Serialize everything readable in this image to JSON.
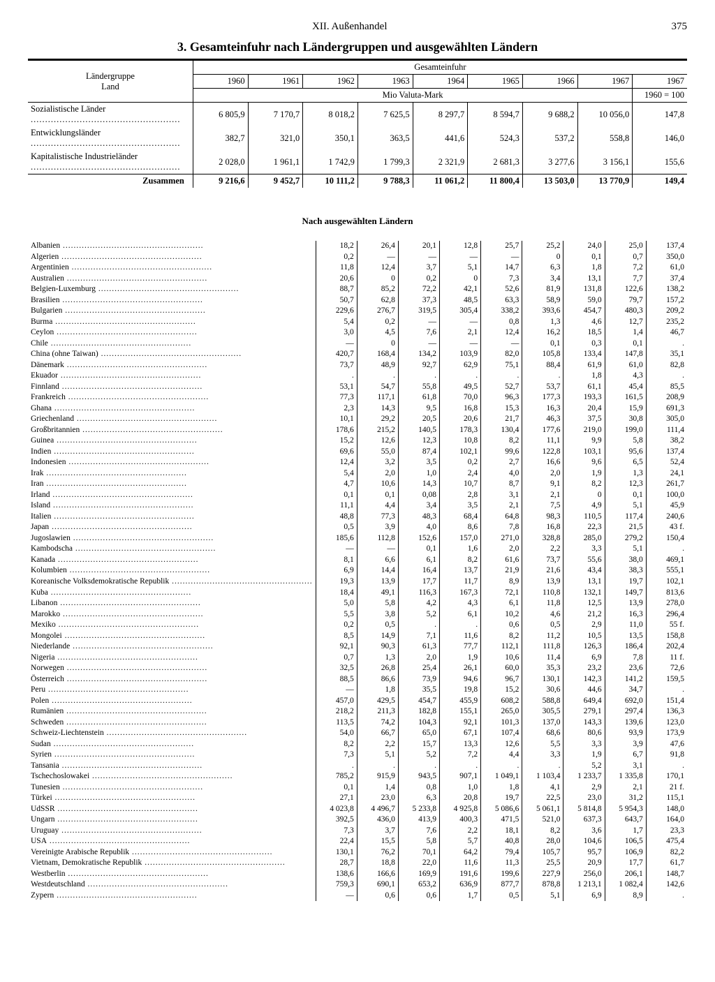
{
  "header": {
    "chapter": "XII. Außenhandel",
    "page": "375"
  },
  "title": "3. Gesamteinfuhr nach Ländergruppen und ausgewählten Ländern",
  "table_header": {
    "stub": "Ländergruppe\nLand",
    "span": "Gesamteinfuhr",
    "years": [
      "1960",
      "1961",
      "1962",
      "1963",
      "1964",
      "1965",
      "1966",
      "1967",
      "1967"
    ],
    "unit": "Mio Valuta-Mark",
    "index_base": "1960 = 100"
  },
  "groups": [
    {
      "label": "Sozialistische Länder",
      "vals": [
        "6 805,9",
        "7 170,7",
        "8 018,2",
        "7 625,5",
        "8 297,7",
        "8 594,7",
        "9 688,2",
        "10 056,0",
        "147,8"
      ]
    },
    {
      "label": "Entwicklungsländer",
      "vals": [
        "382,7",
        "321,0",
        "350,1",
        "363,5",
        "441,6",
        "524,3",
        "537,2",
        "558,8",
        "146,0"
      ]
    },
    {
      "label": "Kapitalistische Industrieländer",
      "vals": [
        "2 028,0",
        "1 961,1",
        "1 742,9",
        "1 799,3",
        "2 321,9",
        "2 681,3",
        "3 277,6",
        "3 156,1",
        "155,6"
      ]
    }
  ],
  "sum": {
    "label": "Zusammen",
    "vals": [
      "9 216,6",
      "9 452,7",
      "10 111,2",
      "9 788,3",
      "11 061,2",
      "11 800,4",
      "13 503,0",
      "13 770,9",
      "149,4"
    ]
  },
  "sub_title": "Nach ausgewählten Ländern",
  "countries": [
    [
      "Albanien",
      "18,2",
      "26,4",
      "20,1",
      "12,8",
      "25,7",
      "25,2",
      "24,0",
      "25,0",
      "137,4"
    ],
    [
      "Algerien",
      "0,2",
      "—",
      "—",
      "—",
      "—",
      "0",
      "0,1",
      "0,7",
      "350,0"
    ],
    [
      "Argentinien",
      "11,8",
      "12,4",
      "3,7",
      "5,1",
      "14,7",
      "6,3",
      "1,8",
      "7,2",
      "61,0"
    ],
    [
      "Australien",
      "20,6",
      "0",
      "0,2",
      "0",
      "7,3",
      "3,4",
      "13,1",
      "7,7",
      "37,4"
    ],
    [
      "Belgien-Luxemburg",
      "88,7",
      "85,2",
      "72,2",
      "42,1",
      "52,6",
      "81,9",
      "131,8",
      "122,6",
      "138,2"
    ],
    [
      "Brasilien",
      "50,7",
      "62,8",
      "37,3",
      "48,5",
      "63,3",
      "58,9",
      "59,0",
      "79,7",
      "157,2"
    ],
    [
      "Bulgarien",
      "229,6",
      "276,7",
      "319,5",
      "305,4",
      "338,2",
      "393,6",
      "454,7",
      "480,3",
      "209,2"
    ],
    [
      "Burma",
      "5,4",
      "0,2",
      "—",
      "—",
      "0,8",
      "1,3",
      "4,6",
      "12,7",
      "235,2"
    ],
    [
      "Ceylon",
      "3,0",
      "4,5",
      "7,6",
      "2,1",
      "12,4",
      "16,2",
      "18,5",
      "1,4",
      "46,7"
    ],
    [
      "Chile",
      "—",
      "0",
      "—",
      "—",
      "—",
      "0,1",
      "0,3",
      "0,1",
      "."
    ],
    [
      "China (ohne Taiwan)",
      "420,7",
      "168,4",
      "134,2",
      "103,9",
      "82,0",
      "105,8",
      "133,4",
      "147,8",
      "35,1"
    ],
    [
      "Dänemark",
      "73,7",
      "48,9",
      "92,7",
      "62,9",
      "75,1",
      "88,4",
      "61,9",
      "61,0",
      "82,8"
    ],
    [
      "Ekuador",
      ".",
      ".",
      ".",
      ".",
      ".",
      ".",
      "1,8",
      "4,3",
      "."
    ],
    [
      "Finnland",
      "53,1",
      "54,7",
      "55,8",
      "49,5",
      "52,7",
      "53,7",
      "61,1",
      "45,4",
      "85,5"
    ],
    [
      "Frankreich",
      "77,3",
      "117,1",
      "61,8",
      "70,0",
      "96,3",
      "177,3",
      "193,3",
      "161,5",
      "208,9"
    ],
    [
      "Ghana",
      "2,3",
      "14,3",
      "9,5",
      "16,8",
      "15,3",
      "16,3",
      "20,4",
      "15,9",
      "691,3"
    ],
    [
      "Griechenland",
      "10,1",
      "29,2",
      "20,5",
      "20,6",
      "21,7",
      "46,3",
      "37,5",
      "30,8",
      "305,0"
    ],
    [
      "Großbritannien",
      "178,6",
      "215,2",
      "140,5",
      "178,3",
      "130,4",
      "177,6",
      "219,0",
      "199,0",
      "111,4"
    ],
    [
      "Guinea",
      "15,2",
      "12,6",
      "12,3",
      "10,8",
      "8,2",
      "11,1",
      "9,9",
      "5,8",
      "38,2"
    ],
    [
      "Indien",
      "69,6",
      "55,0",
      "87,4",
      "102,1",
      "99,6",
      "122,8",
      "103,1",
      "95,6",
      "137,4"
    ],
    [
      "Indonesien",
      "12,4",
      "3,2",
      "3,5",
      "0,2",
      "2,7",
      "16,6",
      "9,6",
      "6,5",
      "52,4"
    ],
    [
      "Irak",
      "5,4",
      "2,0",
      "1,0",
      "2,4",
      "4,0",
      "2,0",
      "1,9",
      "1,3",
      "24,1"
    ],
    [
      "Iran",
      "4,7",
      "10,6",
      "14,3",
      "10,7",
      "8,7",
      "9,1",
      "8,2",
      "12,3",
      "261,7"
    ],
    [
      "Irland",
      "0,1",
      "0,1",
      "0,08",
      "2,8",
      "3,1",
      "2,1",
      "0",
      "0,1",
      "100,0"
    ],
    [
      "Island",
      "11,1",
      "4,4",
      "3,4",
      "3,5",
      "2,1",
      "7,5",
      "4,9",
      "5,1",
      "45,9"
    ],
    [
      "Italien",
      "48,8",
      "77,3",
      "48,3",
      "68,4",
      "64,8",
      "98,3",
      "110,5",
      "117,4",
      "240,6"
    ],
    [
      "Japan",
      "0,5",
      "3,9",
      "4,0",
      "8,6",
      "7,8",
      "16,8",
      "22,3",
      "21,5",
      "43 f."
    ],
    [
      "Jugoslawien",
      "185,6",
      "112,8",
      "152,6",
      "157,0",
      "271,0",
      "328,8",
      "285,0",
      "279,2",
      "150,4"
    ],
    [
      "Kambodscha",
      "—",
      "—",
      "0,1",
      "1,6",
      "2,0",
      "2,2",
      "3,3",
      "5,1",
      "."
    ],
    [
      "Kanada",
      "8,1",
      "6,6",
      "6,1",
      "8,2",
      "61,6",
      "73,7",
      "55,6",
      "38,0",
      "469,1"
    ],
    [
      "Kolumbien",
      "6,9",
      "14,4",
      "16,4",
      "13,7",
      "21,9",
      "21,6",
      "43,4",
      "38,3",
      "555,1"
    ],
    [
      "Koreanische Volksdemokratische Republik",
      "19,3",
      "13,9",
      "17,7",
      "11,7",
      "8,9",
      "13,9",
      "13,1",
      "19,7",
      "102,1"
    ],
    [
      "Kuba",
      "18,4",
      "49,1",
      "116,3",
      "167,3",
      "72,1",
      "110,8",
      "132,1",
      "149,7",
      "813,6"
    ],
    [
      "Libanon",
      "5,0",
      "5,8",
      "4,2",
      "4,3",
      "6,1",
      "11,8",
      "12,5",
      "13,9",
      "278,0"
    ],
    [
      "Marokko",
      "5,5",
      "3,8",
      "5,2",
      "6,1",
      "10,2",
      "4,6",
      "21,2",
      "16,3",
      "296,4"
    ],
    [
      "Mexiko",
      "0,2",
      "0,5",
      ".",
      ".",
      "0,6",
      "0,5",
      "2,9",
      "11,0",
      "55 f."
    ],
    [
      "Mongolei",
      "8,5",
      "14,9",
      "7,1",
      "11,6",
      "8,2",
      "11,2",
      "10,5",
      "13,5",
      "158,8"
    ],
    [
      "Niederlande",
      "92,1",
      "90,3",
      "61,3",
      "77,7",
      "112,1",
      "111,8",
      "126,3",
      "186,4",
      "202,4"
    ],
    [
      "Nigeria",
      "0,7",
      "1,3",
      "2,0",
      "1,9",
      "10,6",
      "11,4",
      "6,9",
      "7,8",
      "11 f."
    ],
    [
      "Norwegen",
      "32,5",
      "26,8",
      "25,4",
      "26,1",
      "60,0",
      "35,3",
      "23,2",
      "23,6",
      "72,6"
    ],
    [
      "Österreich",
      "88,5",
      "86,6",
      "73,9",
      "94,6",
      "96,7",
      "130,1",
      "142,3",
      "141,2",
      "159,5"
    ],
    [
      "Peru",
      "—",
      "1,8",
      "35,5",
      "19,8",
      "15,2",
      "30,6",
      "44,6",
      "34,7",
      "."
    ],
    [
      "Polen",
      "457,0",
      "429,5",
      "454,7",
      "455,9",
      "608,2",
      "588,8",
      "649,4",
      "692,0",
      "151,4"
    ],
    [
      "Rumänien",
      "218,2",
      "211,3",
      "182,8",
      "155,1",
      "265,0",
      "305,5",
      "279,1",
      "297,4",
      "136,3"
    ],
    [
      "Schweden",
      "113,5",
      "74,2",
      "104,3",
      "92,1",
      "101,3",
      "137,0",
      "143,3",
      "139,6",
      "123,0"
    ],
    [
      "Schweiz-Liechtenstein",
      "54,0",
      "66,7",
      "65,0",
      "67,1",
      "107,4",
      "68,6",
      "80,6",
      "93,9",
      "173,9"
    ],
    [
      "Sudan",
      "8,2",
      "2,2",
      "15,7",
      "13,3",
      "12,6",
      "5,5",
      "3,3",
      "3,9",
      "47,6"
    ],
    [
      "Syrien",
      "7,3",
      "5,1",
      "5,2",
      "7,2",
      "4,4",
      "3,3",
      "1,9",
      "6,7",
      "91,8"
    ],
    [
      "Tansania",
      ".",
      ".",
      ".",
      ".",
      ".",
      ".",
      "5,2",
      "3,1",
      "."
    ],
    [
      "Tschechoslowakei",
      "785,2",
      "915,9",
      "943,5",
      "907,1",
      "1 049,1",
      "1 103,4",
      "1 233,7",
      "1 335,8",
      "170,1"
    ],
    [
      "Tunesien",
      "0,1",
      "1,4",
      "0,8",
      "1,0",
      "1,8",
      "4,1",
      "2,9",
      "2,1",
      "21 f."
    ],
    [
      "Türkei",
      "27,1",
      "23,0",
      "6,3",
      "20,8",
      "19,7",
      "22,5",
      "23,0",
      "31,2",
      "115,1"
    ],
    [
      "UdSSR",
      "4 023,8",
      "4 496,7",
      "5 233,8",
      "4 925,8",
      "5 086,6",
      "5 061,1",
      "5 814,8",
      "5 954,3",
      "148,0"
    ],
    [
      "Ungarn",
      "392,5",
      "436,0",
      "413,9",
      "400,3",
      "471,5",
      "521,0",
      "637,3",
      "643,7",
      "164,0"
    ],
    [
      "Uruguay",
      "7,3",
      "3,7",
      "7,6",
      "2,2",
      "18,1",
      "8,2",
      "3,6",
      "1,7",
      "23,3"
    ],
    [
      "USA",
      "22,4",
      "15,5",
      "5,8",
      "5,7",
      "40,8",
      "28,0",
      "104,6",
      "106,5",
      "475,4"
    ],
    [
      "Vereinigte Arabische Republik",
      "130,1",
      "76,2",
      "70,1",
      "64,2",
      "79,4",
      "105,7",
      "95,7",
      "106,9",
      "82,2"
    ],
    [
      "Vietnam, Demokratische Republik",
      "28,7",
      "18,8",
      "22,0",
      "11,6",
      "11,3",
      "25,5",
      "20,9",
      "17,7",
      "61,7"
    ],
    [
      "Westberlin",
      "138,6",
      "166,6",
      "169,9",
      "191,6",
      "199,6",
      "227,9",
      "256,0",
      "206,1",
      "148,7"
    ],
    [
      "Westdeutschland",
      "759,3",
      "690,1",
      "653,2",
      "636,9",
      "877,7",
      "878,8",
      "1 213,1",
      "1 082,4",
      "142,6"
    ],
    [
      "Zypern",
      "—",
      "0,6",
      "0,6",
      "1,7",
      "0,5",
      "5,1",
      "6,9",
      "8,9",
      "."
    ]
  ],
  "style": {
    "font": "Times New Roman",
    "text_color": "#000000",
    "background": "#ffffff",
    "rule_color": "#000000",
    "body_fontsize_pt": 10,
    "title_fontsize_pt": 14
  }
}
